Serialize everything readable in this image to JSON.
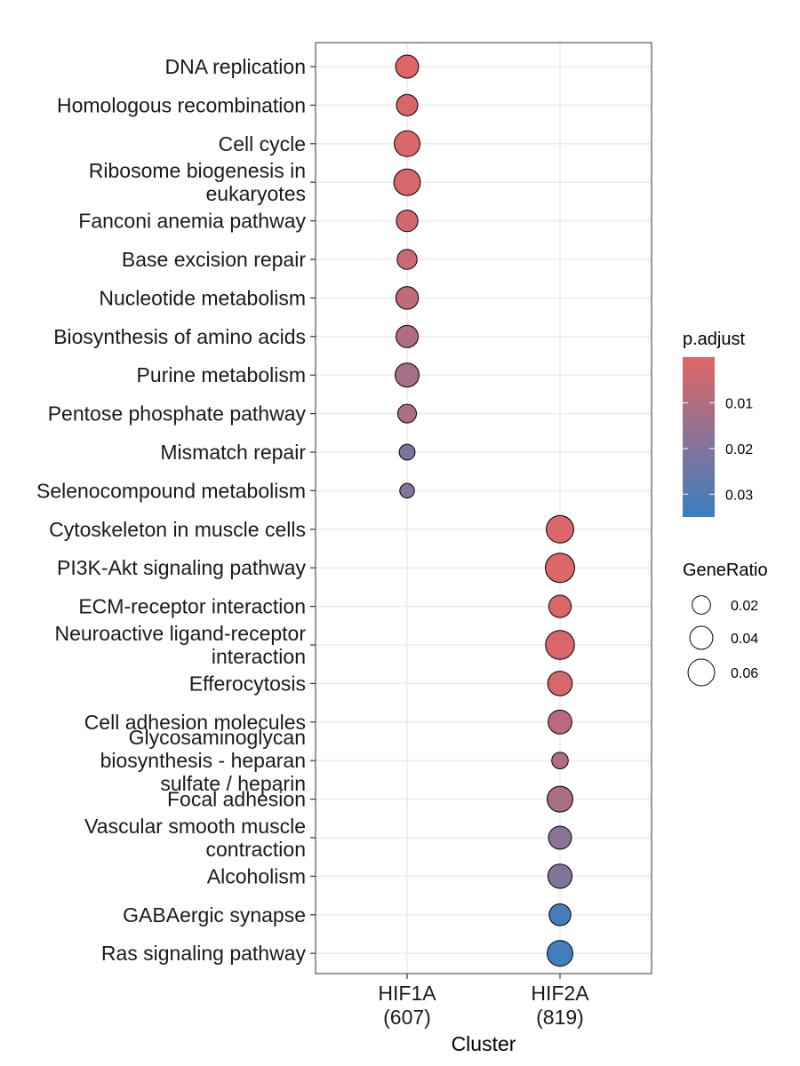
{
  "chart_data": {
    "type": "scatter",
    "subtype": "dot-plot",
    "xlabel": "Cluster",
    "clusters": [
      "HIF1A\n(607)",
      "HIF2A\n(819)"
    ],
    "terms": [
      "DNA replication",
      "Homologous recombination",
      "Cell cycle",
      "Ribosome biogenesis in\neukaryotes",
      "Fanconi anemia pathway",
      "Base excision repair",
      "Nucleotide metabolism",
      "Biosynthesis of amino acids",
      "Purine metabolism",
      "Pentose phosphate pathway",
      "Mismatch repair",
      "Selenocompound metabolism",
      "Cytoskeleton in muscle cells",
      "PI3K-Akt signaling pathway",
      "ECM-receptor interaction",
      "Neuroactive ligand-receptor\ninteraction",
      "Efferocytosis",
      "Cell adhesion molecules",
      "Glycosaminoglycan\nbiosynthesis - heparan\nsulfate / heparin",
      "Focal adhesion",
      "Vascular smooth muscle\ncontraction",
      "Alcoholism",
      "GABAergic synapse",
      "Ras signaling pathway"
    ],
    "points": [
      {
        "cluster": 0,
        "term": 0,
        "gene_ratio": 0.04,
        "p_adjust": 0.0005
      },
      {
        "cluster": 0,
        "term": 1,
        "gene_ratio": 0.032,
        "p_adjust": 0.0015
      },
      {
        "cluster": 0,
        "term": 2,
        "gene_ratio": 0.055,
        "p_adjust": 0.001
      },
      {
        "cluster": 0,
        "term": 3,
        "gene_ratio": 0.06,
        "p_adjust": 0.002
      },
      {
        "cluster": 0,
        "term": 4,
        "gene_ratio": 0.033,
        "p_adjust": 0.003
      },
      {
        "cluster": 0,
        "term": 5,
        "gene_ratio": 0.026,
        "p_adjust": 0.004
      },
      {
        "cluster": 0,
        "term": 6,
        "gene_ratio": 0.038,
        "p_adjust": 0.007
      },
      {
        "cluster": 0,
        "term": 7,
        "gene_ratio": 0.036,
        "p_adjust": 0.01
      },
      {
        "cluster": 0,
        "term": 8,
        "gene_ratio": 0.045,
        "p_adjust": 0.012
      },
      {
        "cluster": 0,
        "term": 9,
        "gene_ratio": 0.021,
        "p_adjust": 0.011
      },
      {
        "cluster": 0,
        "term": 10,
        "gene_ratio": 0.012,
        "p_adjust": 0.022
      },
      {
        "cluster": 0,
        "term": 11,
        "gene_ratio": 0.009,
        "p_adjust": 0.02
      },
      {
        "cluster": 1,
        "term": 12,
        "gene_ratio": 0.065,
        "p_adjust": 0.001
      },
      {
        "cluster": 1,
        "term": 13,
        "gene_ratio": 0.078,
        "p_adjust": 0.001
      },
      {
        "cluster": 1,
        "term": 14,
        "gene_ratio": 0.037,
        "p_adjust": 0.001
      },
      {
        "cluster": 1,
        "term": 15,
        "gene_ratio": 0.075,
        "p_adjust": 0.002
      },
      {
        "cluster": 1,
        "term": 16,
        "gene_ratio": 0.048,
        "p_adjust": 0.002
      },
      {
        "cluster": 1,
        "term": 17,
        "gene_ratio": 0.044,
        "p_adjust": 0.008
      },
      {
        "cluster": 1,
        "term": 18,
        "gene_ratio": 0.014,
        "p_adjust": 0.01
      },
      {
        "cluster": 1,
        "term": 19,
        "gene_ratio": 0.055,
        "p_adjust": 0.012
      },
      {
        "cluster": 1,
        "term": 20,
        "gene_ratio": 0.04,
        "p_adjust": 0.018
      },
      {
        "cluster": 1,
        "term": 21,
        "gene_ratio": 0.046,
        "p_adjust": 0.02
      },
      {
        "cluster": 1,
        "term": 22,
        "gene_ratio": 0.034,
        "p_adjust": 0.032
      },
      {
        "cluster": 1,
        "term": 23,
        "gene_ratio": 0.055,
        "p_adjust": 0.033
      }
    ],
    "color_legend": {
      "title": "p.adjust",
      "ticks": [
        "0.01",
        "0.02",
        "0.03"
      ],
      "tick_values": [
        0.01,
        0.02,
        0.03
      ],
      "range": [
        0.0,
        0.035
      ],
      "low_color": "#E06666",
      "high_color": "#3A7EC0"
    },
    "size_legend": {
      "title": "GeneRatio",
      "labels": [
        "0.02",
        "0.04",
        "0.06"
      ],
      "values": [
        0.02,
        0.04,
        0.06
      ]
    },
    "grid": true,
    "legend_position": "right"
  }
}
